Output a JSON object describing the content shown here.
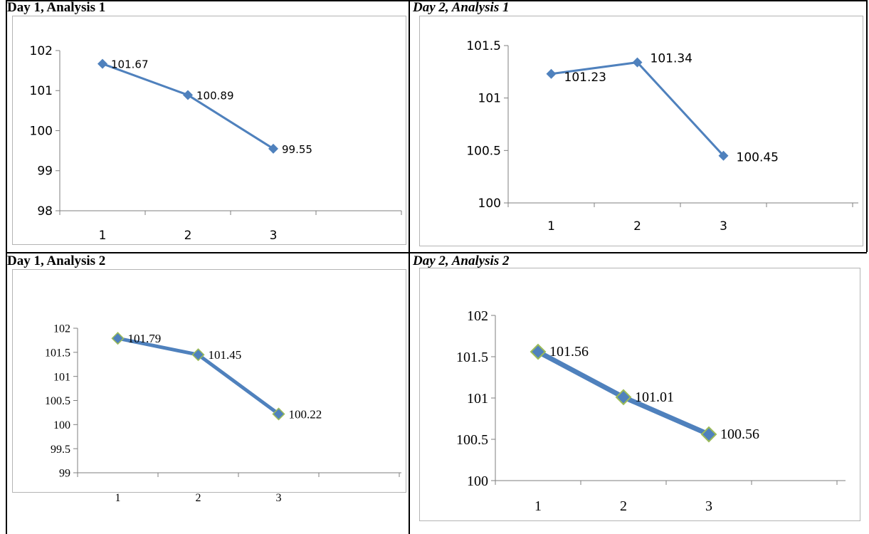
{
  "colors": {
    "line": "#4f81bd",
    "marker_fill": "#4f81bd",
    "marker_stroke_bottom": "#9bbb59",
    "axis": "#7f7f7f",
    "frame": "#b4b4b4",
    "text": "#000000"
  },
  "chart_data": [
    {
      "type": "line",
      "title": "Day 1, Analysis 1",
      "categories": [
        "1",
        "2",
        "3"
      ],
      "values": [
        101.67,
        100.89,
        99.55
      ],
      "data_labels": [
        "101.67",
        "100.89",
        "99.55"
      ],
      "ylim": [
        98,
        102
      ],
      "yticks": [
        "98",
        "99",
        "100",
        "101",
        "102"
      ],
      "grid": false,
      "legend": "none"
    },
    {
      "type": "line",
      "title": "Day 2, Analysis 1",
      "categories": [
        "1",
        "2",
        "3"
      ],
      "values": [
        101.23,
        101.34,
        100.45
      ],
      "data_labels": [
        "101.23",
        "101.34",
        "100.45"
      ],
      "ylim": [
        100,
        101.5
      ],
      "yticks": [
        "100",
        "100.5",
        "101",
        "101.5"
      ],
      "grid": false,
      "legend": "none"
    },
    {
      "type": "line",
      "title": "Day 1, Analysis 2",
      "categories": [
        "1",
        "2",
        "3"
      ],
      "values": [
        101.79,
        101.45,
        100.22
      ],
      "data_labels": [
        "101.79",
        "101.45",
        "100.22"
      ],
      "ylim": [
        99,
        102
      ],
      "yticks": [
        "99",
        "99.5",
        "100",
        "100.5",
        "101",
        "101.5",
        "102"
      ],
      "grid": false,
      "legend": "none"
    },
    {
      "type": "line",
      "title": "Day 2, Analysis 2",
      "categories": [
        "1",
        "2",
        "3"
      ],
      "values": [
        101.56,
        101.01,
        100.56
      ],
      "data_labels": [
        "101.56",
        "101.01",
        "100.56"
      ],
      "ylim": [
        100,
        102
      ],
      "yticks": [
        "100",
        "100.5",
        "101",
        "101.5",
        "102"
      ],
      "grid": false,
      "legend": "none"
    }
  ]
}
